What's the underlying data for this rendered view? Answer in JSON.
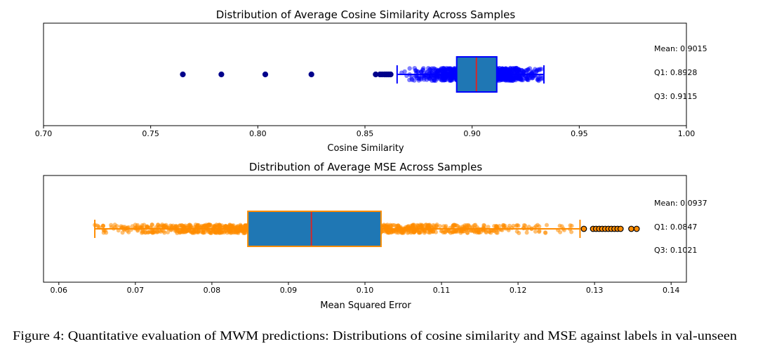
{
  "caption": "Figure 4: Quantitative evaluation of MWM predictions: Distributions of cosine similarity and MSE against labels in val-unseen",
  "colors": {
    "box_fill": "#1f77b4",
    "median": "#d62728",
    "cos_points": "#0000ff",
    "cos_outliers": "#00008b",
    "cos_box_edge": "#0000ff",
    "mse_points": "#ff8c00",
    "mse_box_edge": "#ff8c00",
    "mse_outlier_edge": "#000000"
  },
  "chart_data": [
    {
      "type": "box",
      "title": "Distribution of Average Cosine Similarity Across Samples",
      "xlabel": "Cosine Similarity",
      "xlim": [
        0.7,
        1.0
      ],
      "xticks": [
        "0.70",
        "0.75",
        "0.80",
        "0.85",
        "0.90",
        "0.95",
        "1.00"
      ],
      "xtick_values": [
        0.7,
        0.75,
        0.8,
        0.85,
        0.9,
        0.95,
        1.0
      ],
      "stats": {
        "whisker_low": 0.865,
        "q1": 0.8928,
        "median": 0.902,
        "q3": 0.9115,
        "whisker_high": 0.9335,
        "mean": 0.9015
      },
      "outliers": [
        0.765,
        0.783,
        0.8035,
        0.825,
        0.855,
        0.857,
        0.858,
        0.859,
        0.8595,
        0.86,
        0.8605,
        0.861,
        0.8615,
        0.862
      ],
      "annotations": [
        "Mean: 0.9015",
        "Q1: 0.8928",
        "Q3: 0.9115"
      ]
    },
    {
      "type": "box",
      "title": "Distribution of Average MSE Across Samples",
      "xlabel": "Mean Squared Error",
      "xlim": [
        0.058,
        0.142
      ],
      "xticks": [
        "0.06",
        "0.07",
        "0.08",
        "0.09",
        "0.10",
        "0.11",
        "0.12",
        "0.13",
        "0.14"
      ],
      "xtick_values": [
        0.06,
        0.07,
        0.08,
        0.09,
        0.1,
        0.11,
        0.12,
        0.13,
        0.14
      ],
      "stats": {
        "whisker_low": 0.0647,
        "q1": 0.0847,
        "median": 0.093,
        "q3": 0.1021,
        "whisker_high": 0.1281,
        "mean": 0.0937
      },
      "outliers": [
        0.1286,
        0.1298,
        0.1302,
        0.1306,
        0.131,
        0.1314,
        0.1318,
        0.1322,
        0.1326,
        0.133,
        0.1334,
        0.1348,
        0.1355
      ],
      "annotations": [
        "Mean: 0.0937",
        "Q1: 0.0847",
        "Q3: 0.1021"
      ]
    }
  ]
}
